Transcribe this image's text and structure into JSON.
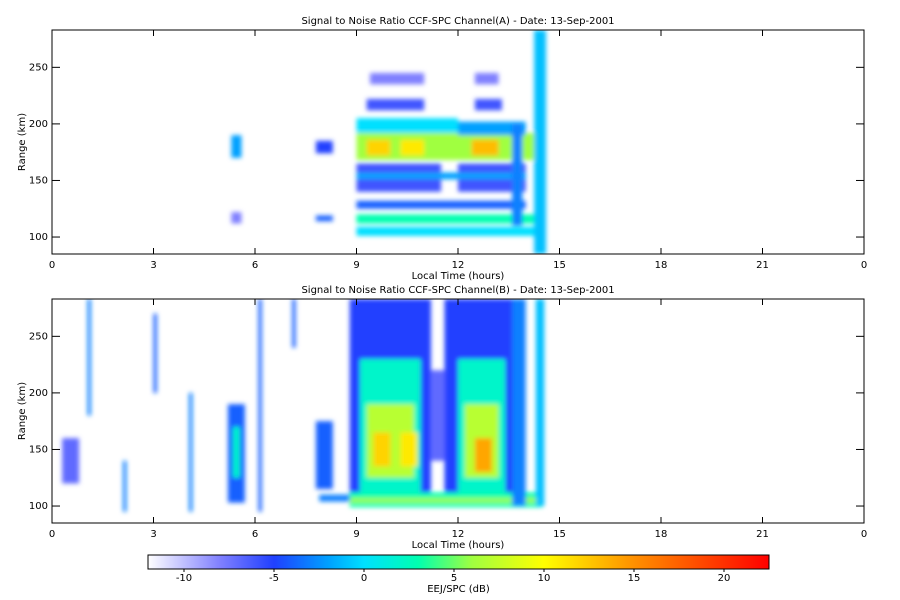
{
  "chart_data": [
    {
      "type": "heatmap",
      "title": "Signal to Noise Ratio CCF-SPC Channel(A) - Date: 13-Sep-2001",
      "xlabel": "Local Time (hours)",
      "ylabel": "Range (km)",
      "xlim": [
        0,
        24
      ],
      "xticks": [
        0,
        3,
        6,
        9,
        12,
        15,
        18,
        21,
        {
          "value": 24,
          "label": "0"
        }
      ],
      "ylim": [
        85,
        283
      ],
      "yticks": [
        100,
        150,
        200,
        250
      ],
      "cells": [
        {
          "x": [
            9,
            14.5
          ],
          "y": [
            168,
            192
          ],
          "value": 6
        },
        {
          "x": [
            9.3,
            10
          ],
          "y": [
            172,
            186
          ],
          "value": 12
        },
        {
          "x": [
            10.3,
            11
          ],
          "y": [
            172,
            186
          ],
          "value": 11
        },
        {
          "x": [
            12.4,
            13.2
          ],
          "y": [
            172,
            186
          ],
          "value": 13
        },
        {
          "x": [
            9,
            12
          ],
          "y": [
            192,
            205
          ],
          "value": 0
        },
        {
          "x": [
            12,
            14
          ],
          "y": [
            190,
            202
          ],
          "value": -2
        },
        {
          "x": [
            9,
            14.3
          ],
          "y": [
            101,
            109
          ],
          "value": 0
        },
        {
          "x": [
            9,
            14.5
          ],
          "y": [
            112,
            120
          ],
          "value": 3
        },
        {
          "x": [
            9,
            11.5
          ],
          "y": [
            140,
            165
          ],
          "value": -6
        },
        {
          "x": [
            12,
            14
          ],
          "y": [
            140,
            165
          ],
          "value": -6
        },
        {
          "x": [
            9,
            14
          ],
          "y": [
            151,
            157
          ],
          "value": -2
        },
        {
          "x": [
            9,
            14
          ],
          "y": [
            125,
            132
          ],
          "value": -4
        },
        {
          "x": [
            9.3,
            11
          ],
          "y": [
            212,
            222
          ],
          "value": -6
        },
        {
          "x": [
            12.5,
            13.3
          ],
          "y": [
            212,
            222
          ],
          "value": -6
        },
        {
          "x": [
            9.4,
            11
          ],
          "y": [
            235,
            245
          ],
          "value": -8
        },
        {
          "x": [
            12.5,
            13.2
          ],
          "y": [
            235,
            245
          ],
          "value": -8
        },
        {
          "x": [
            5.3,
            5.6
          ],
          "y": [
            170,
            190
          ],
          "value": -2
        },
        {
          "x": [
            5.3,
            5.6
          ],
          "y": [
            112,
            122
          ],
          "value": -8
        },
        {
          "x": [
            7.8,
            8.3
          ],
          "y": [
            174,
            185
          ],
          "value": -5
        },
        {
          "x": [
            7.8,
            8.3
          ],
          "y": [
            114,
            119
          ],
          "value": -4
        },
        {
          "x": [
            13.6,
            13.9
          ],
          "y": [
            110,
            200
          ],
          "value": -3
        },
        {
          "x": [
            14.25,
            14.6
          ],
          "y": [
            85,
            283
          ],
          "value": -1
        }
      ]
    },
    {
      "type": "heatmap",
      "title": "Signal to Noise Ratio CCF-SPC Channel(B) - Date: 13-Sep-2001",
      "xlabel": "Local Time (hours)",
      "ylabel": "Range (km)",
      "xlim": [
        0,
        24
      ],
      "xticks": [
        0,
        3,
        6,
        9,
        12,
        15,
        18,
        21,
        {
          "value": 24,
          "label": "0"
        }
      ],
      "ylim": [
        85,
        283
      ],
      "yticks": [
        100,
        150,
        200,
        250
      ],
      "cells": [
        {
          "x": [
            8.8,
            11.2
          ],
          "y": [
            100,
            283
          ],
          "value": -5
        },
        {
          "x": [
            9.1,
            10.9
          ],
          "y": [
            112,
            230
          ],
          "value": 2
        },
        {
          "x": [
            9.3,
            10.7
          ],
          "y": [
            125,
            190
          ],
          "value": 7
        },
        {
          "x": [
            9.5,
            10
          ],
          "y": [
            135,
            165
          ],
          "value": 12
        },
        {
          "x": [
            10.3,
            10.8
          ],
          "y": [
            135,
            165
          ],
          "value": 11
        },
        {
          "x": [
            11.2,
            11.8
          ],
          "y": [
            140,
            220
          ],
          "value": -7
        },
        {
          "x": [
            11.6,
            13.8
          ],
          "y": [
            100,
            283
          ],
          "value": -5
        },
        {
          "x": [
            12,
            13.4
          ],
          "y": [
            112,
            230
          ],
          "value": 2
        },
        {
          "x": [
            12.2,
            13.2
          ],
          "y": [
            125,
            190
          ],
          "value": 7
        },
        {
          "x": [
            12.5,
            13
          ],
          "y": [
            130,
            160
          ],
          "value": 14
        },
        {
          "x": [
            8.8,
            14.5
          ],
          "y": [
            99,
            112
          ],
          "value": 3
        },
        {
          "x": [
            8.8,
            14.5
          ],
          "y": [
            103,
            107
          ],
          "value": 6
        },
        {
          "x": [
            7.9,
            8.8
          ],
          "y": [
            104,
            110
          ],
          "value": -3
        },
        {
          "x": [
            5.2,
            5.7
          ],
          "y": [
            103,
            190
          ],
          "value": -4
        },
        {
          "x": [
            5.35,
            5.55
          ],
          "y": [
            125,
            170
          ],
          "value": 2
        },
        {
          "x": [
            0.3,
            0.8
          ],
          "y": [
            120,
            160
          ],
          "value": -7
        },
        {
          "x": [
            7.8,
            8.3
          ],
          "y": [
            115,
            175
          ],
          "value": -4
        },
        {
          "x": [
            13.6,
            14
          ],
          "y": [
            100,
            283
          ],
          "value": -3
        },
        {
          "x": [
            14.3,
            14.55
          ],
          "y": [
            100,
            283
          ],
          "value": -1
        },
        {
          "x": [
            1.05,
            1.15
          ],
          "y": [
            180,
            283
          ],
          "value": -3
        },
        {
          "x": [
            2.1,
            2.2
          ],
          "y": [
            95,
            140
          ],
          "value": -3
        },
        {
          "x": [
            3,
            3.1
          ],
          "y": [
            200,
            270
          ],
          "value": -4
        },
        {
          "x": [
            4.05,
            4.15
          ],
          "y": [
            95,
            200
          ],
          "value": -3
        },
        {
          "x": [
            6.1,
            6.2
          ],
          "y": [
            95,
            283
          ],
          "value": -4
        },
        {
          "x": [
            7.1,
            7.2
          ],
          "y": [
            240,
            283
          ],
          "value": -4
        }
      ]
    },
    {
      "type": "colorbar",
      "label": "EEJ/SPC (dB)",
      "zlim": [
        -12,
        22.5
      ],
      "ticks": [
        -10,
        -5,
        0,
        5,
        10,
        15,
        20
      ],
      "colormap": [
        {
          "value": -12,
          "color": "#ffffff"
        },
        {
          "value": -8,
          "color": "#8080ff"
        },
        {
          "value": -5,
          "color": "#2040ff"
        },
        {
          "value": -2,
          "color": "#00a0ff"
        },
        {
          "value": 0,
          "color": "#00e0ff"
        },
        {
          "value": 3,
          "color": "#00ffb0"
        },
        {
          "value": 6,
          "color": "#a0ff40"
        },
        {
          "value": 10,
          "color": "#ffff00"
        },
        {
          "value": 15,
          "color": "#ff9000"
        },
        {
          "value": 22.5,
          "color": "#ff0000"
        }
      ]
    }
  ]
}
